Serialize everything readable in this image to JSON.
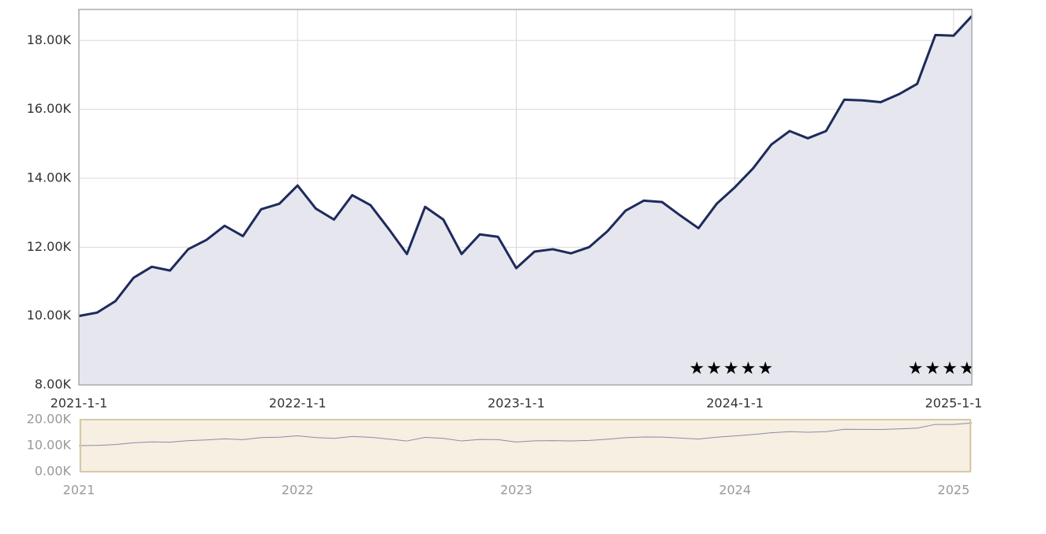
{
  "chart_data": {
    "type": "area",
    "x": [
      "2021-01",
      "2021-02",
      "2021-03",
      "2021-04",
      "2021-05",
      "2021-06",
      "2021-07",
      "2021-08",
      "2021-09",
      "2021-10",
      "2021-11",
      "2021-12",
      "2022-01",
      "2022-02",
      "2022-03",
      "2022-04",
      "2022-05",
      "2022-06",
      "2022-07",
      "2022-08",
      "2022-09",
      "2022-10",
      "2022-11",
      "2022-12",
      "2023-01",
      "2023-02",
      "2023-03",
      "2023-04",
      "2023-05",
      "2023-06",
      "2023-07",
      "2023-08",
      "2023-09",
      "2023-10",
      "2023-11",
      "2023-12",
      "2024-01",
      "2024-02",
      "2024-03",
      "2024-04",
      "2024-05",
      "2024-06",
      "2024-07",
      "2024-08",
      "2024-09",
      "2024-10",
      "2024-11",
      "2024-12",
      "2025-01",
      "2025-02"
    ],
    "series": [
      {
        "color": "#1f2a5c",
        "values": [
          10000,
          10100,
          10430,
          11110,
          11430,
          11320,
          11940,
          12210,
          12620,
          12320,
          13100,
          13260,
          13790,
          13120,
          12800,
          13510,
          13220,
          12530,
          11800,
          13170,
          12800,
          11800,
          12370,
          12300,
          11390,
          11870,
          11940,
          11820,
          12000,
          12460,
          13060,
          13350,
          13310,
          12920,
          12550,
          13260,
          13740,
          14290,
          14980,
          15370,
          15160,
          15370,
          16280,
          16260,
          16210,
          16440,
          16740,
          18160,
          18140,
          18710
        ]
      }
    ],
    "xlim": [
      "2021-01",
      "2025-02"
    ],
    "xticks": [
      {
        "value": "2021-01",
        "label": "2021-1-1"
      },
      {
        "value": "2022-01",
        "label": "2022-1-1"
      },
      {
        "value": "2023-01",
        "label": "2023-1-1"
      },
      {
        "value": "2024-01",
        "label": "2024-1-1"
      },
      {
        "value": "2025-01",
        "label": "2025-1-1"
      }
    ],
    "ylim": [
      8000,
      18900
    ],
    "yticks": [
      {
        "value": 8000,
        "label": "8.00K"
      },
      {
        "value": 10000,
        "label": "10.00K"
      },
      {
        "value": 12000,
        "label": "12.00K"
      },
      {
        "value": 14000,
        "label": "14.00K"
      },
      {
        "value": 16000,
        "label": "16.00K"
      },
      {
        "value": 18000,
        "label": "18.00K"
      }
    ],
    "grid": true,
    "annotations": [
      {
        "x": "2023-11",
        "text": "★★★★★"
      },
      {
        "x": "2024-11",
        "text": "★★★★"
      }
    ],
    "navigator": {
      "ylim": [
        0,
        20000
      ],
      "yticks": [
        {
          "value": 0,
          "label": "0.00K"
        },
        {
          "value": 10000,
          "label": "10.00K"
        },
        {
          "value": 20000,
          "label": "20.00K"
        }
      ],
      "xticks": [
        {
          "value": "2021-01",
          "label": "2021"
        },
        {
          "value": "2022-01",
          "label": "2022"
        },
        {
          "value": "2023-01",
          "label": "2023"
        },
        {
          "value": "2024-01",
          "label": "2024"
        },
        {
          "value": "2025-01",
          "label": "2025"
        }
      ]
    }
  }
}
